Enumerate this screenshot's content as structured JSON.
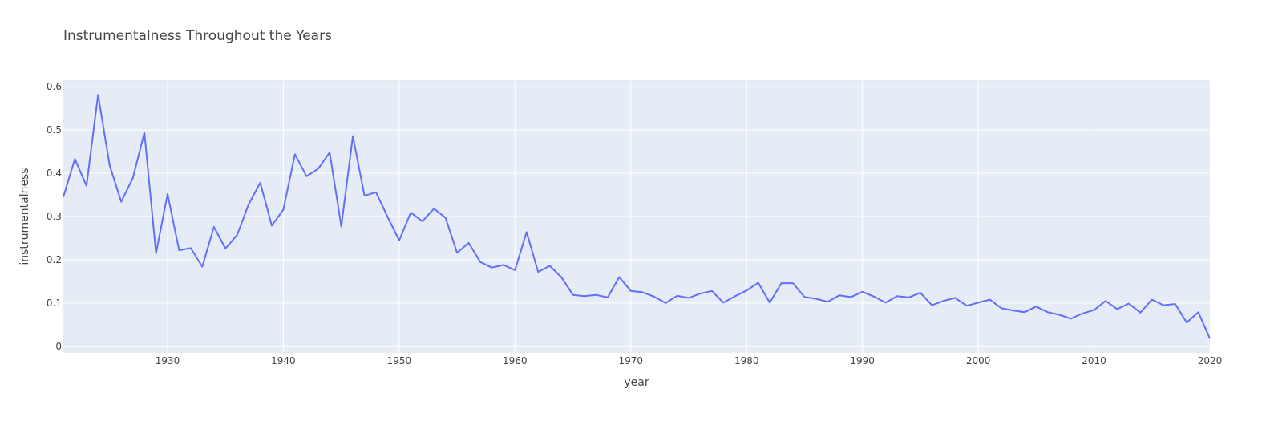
{
  "chart_data": {
    "type": "line",
    "title": "Instrumentalness Throughout the Years",
    "xlabel": "year",
    "ylabel": "instrumentalness",
    "xlim": [
      1921,
      2020
    ],
    "ylim": [
      -0.015,
      0.615
    ],
    "x_ticks": [
      "1930",
      "1940",
      "1950",
      "1960",
      "1970",
      "1980",
      "1990",
      "2000",
      "2010",
      "2020"
    ],
    "y_ticks": [
      "0",
      "0.1",
      "0.2",
      "0.3",
      "0.4",
      "0.5",
      "0.6"
    ],
    "grid": true,
    "line_color": "#636efa",
    "plot_bg": "#e5ecf6",
    "x": [
      1921,
      1922,
      1923,
      1924,
      1925,
      1926,
      1927,
      1928,
      1929,
      1930,
      1931,
      1932,
      1933,
      1934,
      1935,
      1936,
      1937,
      1938,
      1939,
      1940,
      1941,
      1942,
      1943,
      1944,
      1945,
      1946,
      1947,
      1948,
      1949,
      1950,
      1951,
      1952,
      1953,
      1954,
      1955,
      1956,
      1957,
      1958,
      1959,
      1960,
      1961,
      1962,
      1963,
      1964,
      1965,
      1966,
      1967,
      1968,
      1969,
      1970,
      1971,
      1972,
      1973,
      1974,
      1975,
      1976,
      1977,
      1978,
      1979,
      1980,
      1981,
      1982,
      1983,
      1984,
      1985,
      1986,
      1987,
      1988,
      1989,
      1990,
      1991,
      1992,
      1993,
      1994,
      1995,
      1996,
      1997,
      1998,
      1999,
      2000,
      2001,
      2002,
      2003,
      2004,
      2005,
      2006,
      2007,
      2008,
      2009,
      2010,
      2011,
      2012,
      2013,
      2014,
      2015,
      2016,
      2017,
      2018,
      2019,
      2020
    ],
    "y": [
      0.345,
      0.433,
      0.371,
      0.581,
      0.418,
      0.334,
      0.389,
      0.494,
      0.215,
      0.352,
      0.222,
      0.227,
      0.184,
      0.276,
      0.226,
      0.257,
      0.328,
      0.378,
      0.279,
      0.316,
      0.444,
      0.393,
      0.41,
      0.448,
      0.277,
      0.486,
      0.348,
      0.356,
      0.299,
      0.245,
      0.309,
      0.289,
      0.318,
      0.297,
      0.216,
      0.239,
      0.195,
      0.182,
      0.188,
      0.176,
      0.264,
      0.172,
      0.186,
      0.16,
      0.119,
      0.116,
      0.119,
      0.113,
      0.16,
      0.128,
      0.125,
      0.115,
      0.1,
      0.117,
      0.112,
      0.122,
      0.128,
      0.101,
      0.116,
      0.129,
      0.147,
      0.101,
      0.146,
      0.146,
      0.114,
      0.11,
      0.103,
      0.118,
      0.114,
      0.126,
      0.115,
      0.101,
      0.116,
      0.113,
      0.124,
      0.095,
      0.105,
      0.112,
      0.094,
      0.101,
      0.108,
      0.088,
      0.083,
      0.079,
      0.092,
      0.079,
      0.073,
      0.064,
      0.076,
      0.084,
      0.105,
      0.086,
      0.099,
      0.078,
      0.108,
      0.095,
      0.098,
      0.055,
      0.079,
      0.018
    ]
  }
}
